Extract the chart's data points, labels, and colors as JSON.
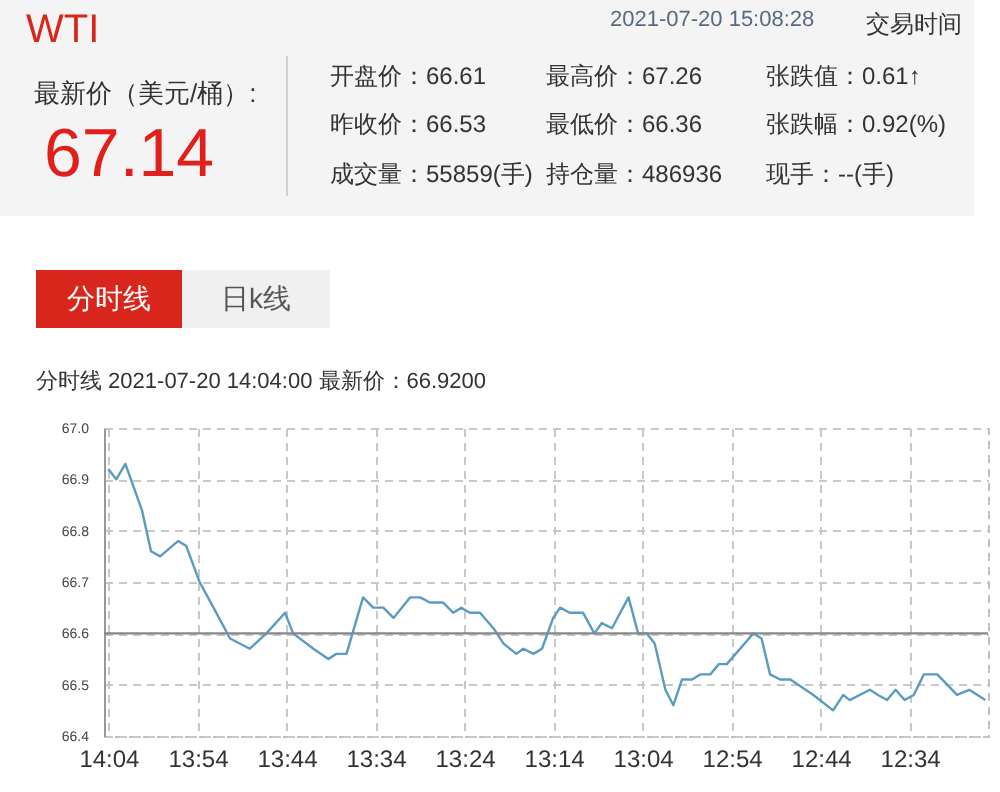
{
  "chart_data": [
    {
      "type": "other",
      "title": "WTI",
      "annotations": [
        "2021-07-20 15:08:28",
        "交易时间",
        "最新价（美元/桶）:",
        "67.14",
        "开盘价：66.61",
        "最高价：67.26",
        "张跌值：0.61↑",
        "昨收价：66.53",
        "最低价：66.36",
        "张跌幅：0.92(%)",
        "成交量：55859(手)",
        "持仓量：486936",
        "现手：--(手)"
      ]
    },
    {
      "type": "line",
      "subtitle": "分时线  2021-07-20 14:04:00  最新价：66.9200",
      "annotations": [
        "分时线",
        "日k线"
      ],
      "xlim": [
        14.075,
        12.42
      ],
      "xticks": [
        {
          "value": 14.0667,
          "label": "14:04"
        },
        {
          "value": 13.9,
          "label": "13:54"
        },
        {
          "value": 13.7333,
          "label": "13:44"
        },
        {
          "value": 13.5667,
          "label": "13:34"
        },
        {
          "value": 13.4,
          "label": "13:24"
        },
        {
          "value": 13.2333,
          "label": "13:14"
        },
        {
          "value": 13.0667,
          "label": "13:04"
        },
        {
          "value": 12.9,
          "label": "12:54"
        },
        {
          "value": 12.7333,
          "label": "12:44"
        },
        {
          "value": 12.5667,
          "label": "12:34"
        }
      ],
      "ylim": [
        66.4,
        67.0
      ],
      "yticks": [
        66.4,
        66.5,
        66.6,
        66.7,
        66.8,
        66.9,
        {
          "value": 67.0,
          "label": "67.0"
        }
      ],
      "grid": true,
      "marker": "none",
      "line_style": "solid",
      "ref_lines": [
        {
          "axis": "y",
          "value": 66.6,
          "color": "#888888"
        }
      ],
      "series": [
        {
          "color": "#5b9bc0",
          "x": [
            14.067,
            14.052,
            14.035,
            14.004,
            13.987,
            13.97,
            13.936,
            13.921,
            13.896,
            13.87,
            13.839,
            13.802,
            13.771,
            13.736,
            13.721,
            13.683,
            13.655,
            13.64,
            13.621,
            13.59,
            13.571,
            13.552,
            13.533,
            13.502,
            13.483,
            13.465,
            13.44,
            13.421,
            13.406,
            13.39,
            13.371,
            13.346,
            13.327,
            13.303,
            13.29,
            13.271,
            13.255,
            13.234,
            13.221,
            13.203,
            13.178,
            13.157,
            13.143,
            13.124,
            13.093,
            13.075,
            13.059,
            13.044,
            13.024,
            13.009,
            12.993,
            12.974,
            12.959,
            12.94,
            12.924,
            12.909,
            12.859,
            12.844,
            12.828,
            12.809,
            12.79,
            12.747,
            12.71,
            12.691,
            12.679,
            12.641,
            12.626,
            12.609,
            12.593,
            12.576,
            12.559,
            12.54,
            12.515,
            12.478,
            12.455,
            12.425
          ],
          "values": [
            66.92,
            66.9,
            66.93,
            66.84,
            66.76,
            66.75,
            66.78,
            66.77,
            66.7,
            66.65,
            66.59,
            66.57,
            66.6,
            66.64,
            66.6,
            66.57,
            66.55,
            66.56,
            66.56,
            66.67,
            66.65,
            66.65,
            66.63,
            66.67,
            66.67,
            66.66,
            66.66,
            66.64,
            66.65,
            66.64,
            66.64,
            66.61,
            66.58,
            66.56,
            66.57,
            66.56,
            66.57,
            66.63,
            66.65,
            66.64,
            66.64,
            66.6,
            66.62,
            66.61,
            66.67,
            66.6,
            66.6,
            66.58,
            66.49,
            66.46,
            66.51,
            66.51,
            66.52,
            66.52,
            66.54,
            66.54,
            66.6,
            66.59,
            66.52,
            66.51,
            66.51,
            66.48,
            66.45,
            66.48,
            66.47,
            66.49,
            66.48,
            66.47,
            66.49,
            66.47,
            66.48,
            66.52,
            66.52,
            66.48,
            66.49,
            66.47
          ]
        }
      ]
    }
  ]
}
